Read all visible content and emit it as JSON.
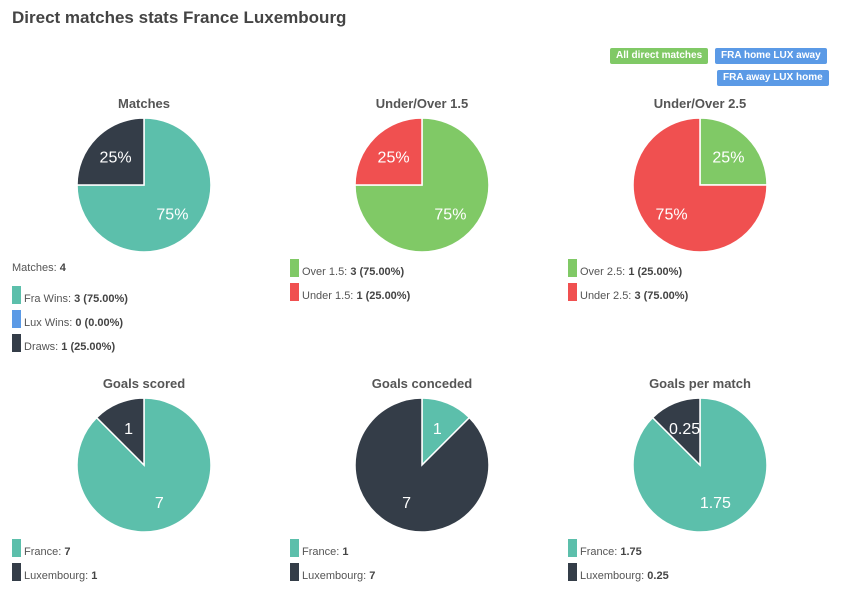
{
  "title": "Direct matches stats France Luxembourg",
  "filters": [
    {
      "label": "All direct matches",
      "color": "#80c966",
      "active": true
    },
    {
      "label": "FRA home LUX away",
      "color": "#5b9ae6"
    },
    {
      "label": "FRA away LUX home",
      "color": "#5b9ae6"
    }
  ],
  "colors": {
    "teal": "#5cbfab",
    "dark": "#343d48",
    "green": "#80c966",
    "red": "#f05050",
    "blue": "#5b9ae6"
  },
  "charts": [
    {
      "title": "Matches",
      "header": {
        "label": "Matches:",
        "value": "4"
      },
      "slices": [
        {
          "label": "Fra Wins:",
          "value": 3,
          "text": "3 (75.00%)",
          "color": "#5cbfab",
          "pie_label": "75%"
        },
        {
          "label": "Lux Wins:",
          "value": 0,
          "text": "0 (0.00%)",
          "color": "#5b9ae6",
          "pie_label": ""
        },
        {
          "label": "Draws:",
          "value": 1,
          "text": "1 (25.00%)",
          "color": "#343d48",
          "pie_label": "25%"
        }
      ]
    },
    {
      "title": "Under/Over 1.5",
      "slices": [
        {
          "label": "Over 1.5:",
          "value": 3,
          "text": "3 (75.00%)",
          "color": "#80c966",
          "pie_label": "75%"
        },
        {
          "label": "Under 1.5:",
          "value": 1,
          "text": "1 (25.00%)",
          "color": "#f05050",
          "pie_label": "25%"
        }
      ]
    },
    {
      "title": "Under/Over 2.5",
      "slices": [
        {
          "label": "Over 2.5:",
          "value": 1,
          "text": "1 (25.00%)",
          "color": "#80c966",
          "pie_label": "25%"
        },
        {
          "label": "Under 2.5:",
          "value": 3,
          "text": "3 (75.00%)",
          "color": "#f05050",
          "pie_label": "75%"
        }
      ]
    },
    {
      "title": "Goals scored",
      "slices": [
        {
          "label": "France:",
          "value": 7,
          "text": "7",
          "color": "#5cbfab",
          "pie_label": "7"
        },
        {
          "label": "Luxembourg:",
          "value": 1,
          "text": "1",
          "color": "#343d48",
          "pie_label": "1"
        }
      ]
    },
    {
      "title": "Goals conceded",
      "slices": [
        {
          "label": "France:",
          "value": 1,
          "text": "1",
          "color": "#5cbfab",
          "pie_label": "1"
        },
        {
          "label": "Luxembourg:",
          "value": 7,
          "text": "7",
          "color": "#343d48",
          "pie_label": "7"
        }
      ]
    },
    {
      "title": "Goals per match",
      "slices": [
        {
          "label": "France:",
          "value": 1.75,
          "text": "1.75",
          "color": "#5cbfab",
          "pie_label": "1.75"
        },
        {
          "label": "Luxembourg:",
          "value": 0.25,
          "text": "0.25",
          "color": "#343d48",
          "pie_label": "0.25"
        }
      ]
    }
  ]
}
